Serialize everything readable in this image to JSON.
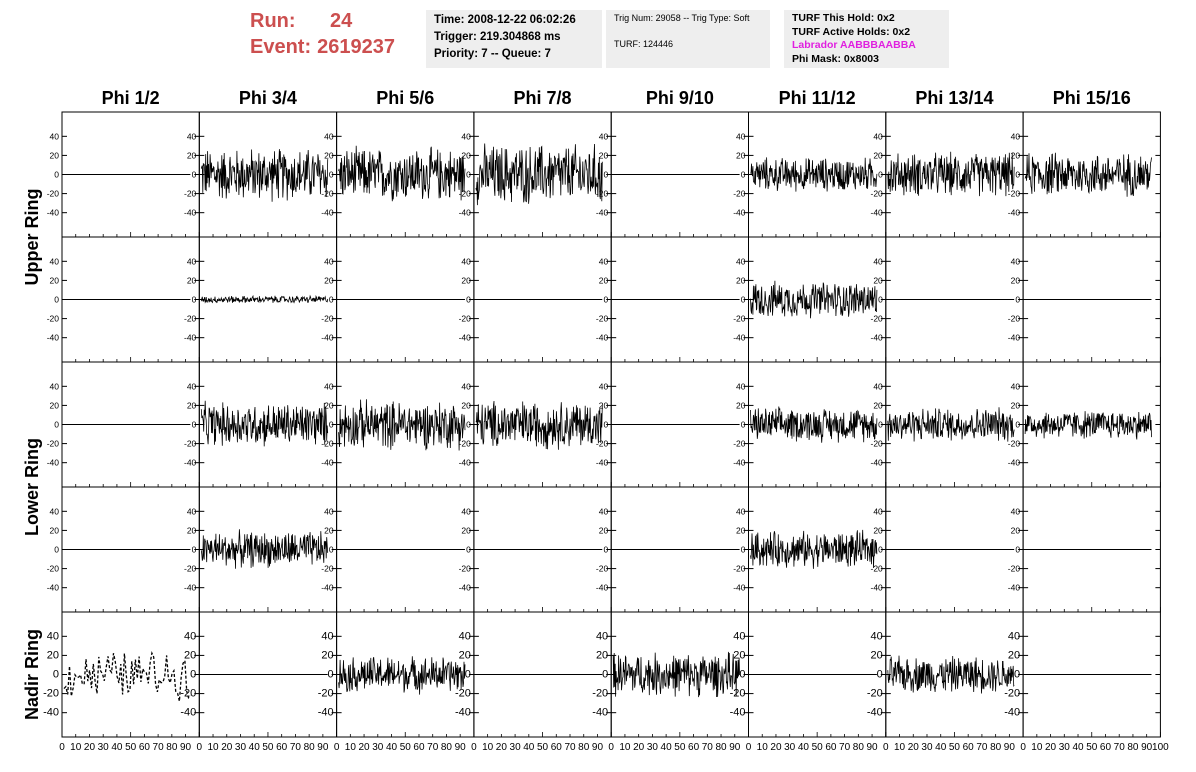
{
  "header": {
    "run_label": "Run:",
    "run_value": "24",
    "event_label": "Event:",
    "event_value": "2619237",
    "time": "Time: 2008-12-22 06:02:26",
    "trigger": "Trigger: 219.304868 ms",
    "priority": "Priority: 7 -- Queue: 7",
    "trig_num": "Trig Num: 29058 -- Trig Type: Soft",
    "turf": "TURF: 124446",
    "turf_hold": "TURF This Hold: 0x2",
    "turf_active": "TURF Active Holds: 0x2",
    "labrador": "Labrador AABBBAABBA",
    "phi_mask": "Phi Mask: 0x8003",
    "accent_color": "#cc4f4f",
    "labrador_color": "#e020e0",
    "box_color": "#eeeeee"
  },
  "chart_data": {
    "type": "line",
    "columns": [
      "Phi 1/2",
      "Phi 3/4",
      "Phi 5/6",
      "Phi 7/8",
      "Phi 9/10",
      "Phi 11/12",
      "Phi 13/14",
      "Phi 15/16"
    ],
    "row_labels": [
      "Upper Ring",
      "Lower Ring",
      "Nadir Ring"
    ],
    "xlim": [
      0,
      100
    ],
    "ylim": [
      -55,
      55
    ],
    "yticks": [
      -40,
      -20,
      0,
      20,
      40
    ],
    "x_tick_labels": [
      "0",
      "10",
      "20",
      "30",
      "40",
      "50",
      "60",
      "70",
      "80",
      "90",
      "100"
    ],
    "samples_per_trace": 260,
    "panels": [
      [
        {
          "amp": 0,
          "style": "flat"
        },
        {
          "amp": 22,
          "style": "noise"
        },
        {
          "amp": 22,
          "style": "noise"
        },
        {
          "amp": 25,
          "style": "noise"
        },
        {
          "amp": 0,
          "style": "flat"
        },
        {
          "amp": 14,
          "style": "noise"
        },
        {
          "amp": 18,
          "style": "noise"
        },
        {
          "amp": 18,
          "style": "noise"
        }
      ],
      [
        {
          "amp": 0,
          "style": "flat"
        },
        {
          "amp": 3,
          "style": "noise"
        },
        {
          "amp": 0,
          "style": "flat"
        },
        {
          "amp": 0,
          "style": "flat"
        },
        {
          "amp": 0,
          "style": "flat"
        },
        {
          "amp": 15,
          "style": "noise"
        },
        {
          "amp": 0,
          "style": "flat"
        },
        {
          "amp": 0,
          "style": "flat"
        }
      ],
      [
        {
          "amp": 0,
          "style": "flat"
        },
        {
          "amp": 18,
          "style": "noise"
        },
        {
          "amp": 20,
          "style": "noise"
        },
        {
          "amp": 20,
          "style": "noise"
        },
        {
          "amp": 0,
          "style": "flat"
        },
        {
          "amp": 14,
          "style": "noise"
        },
        {
          "amp": 14,
          "style": "noise"
        },
        {
          "amp": 12,
          "style": "noise"
        }
      ],
      [
        {
          "amp": 0,
          "style": "flat"
        },
        {
          "amp": 15,
          "style": "noise"
        },
        {
          "amp": 0,
          "style": "flat"
        },
        {
          "amp": 0,
          "style": "flat"
        },
        {
          "amp": 0,
          "style": "flat"
        },
        {
          "amp": 15,
          "style": "noise"
        },
        {
          "amp": 0,
          "style": "flat"
        },
        {
          "amp": 0,
          "style": "flat"
        }
      ],
      [
        {
          "amp": 20,
          "style": "dashed"
        },
        {
          "amp": 0,
          "style": "flat"
        },
        {
          "amp": 15,
          "style": "noise"
        },
        {
          "amp": 0,
          "style": "flat"
        },
        {
          "amp": 18,
          "style": "noise"
        },
        {
          "amp": 0,
          "style": "flat"
        },
        {
          "amp": 15,
          "style": "noise"
        },
        {
          "amp": 0,
          "style": "flat"
        }
      ]
    ]
  }
}
